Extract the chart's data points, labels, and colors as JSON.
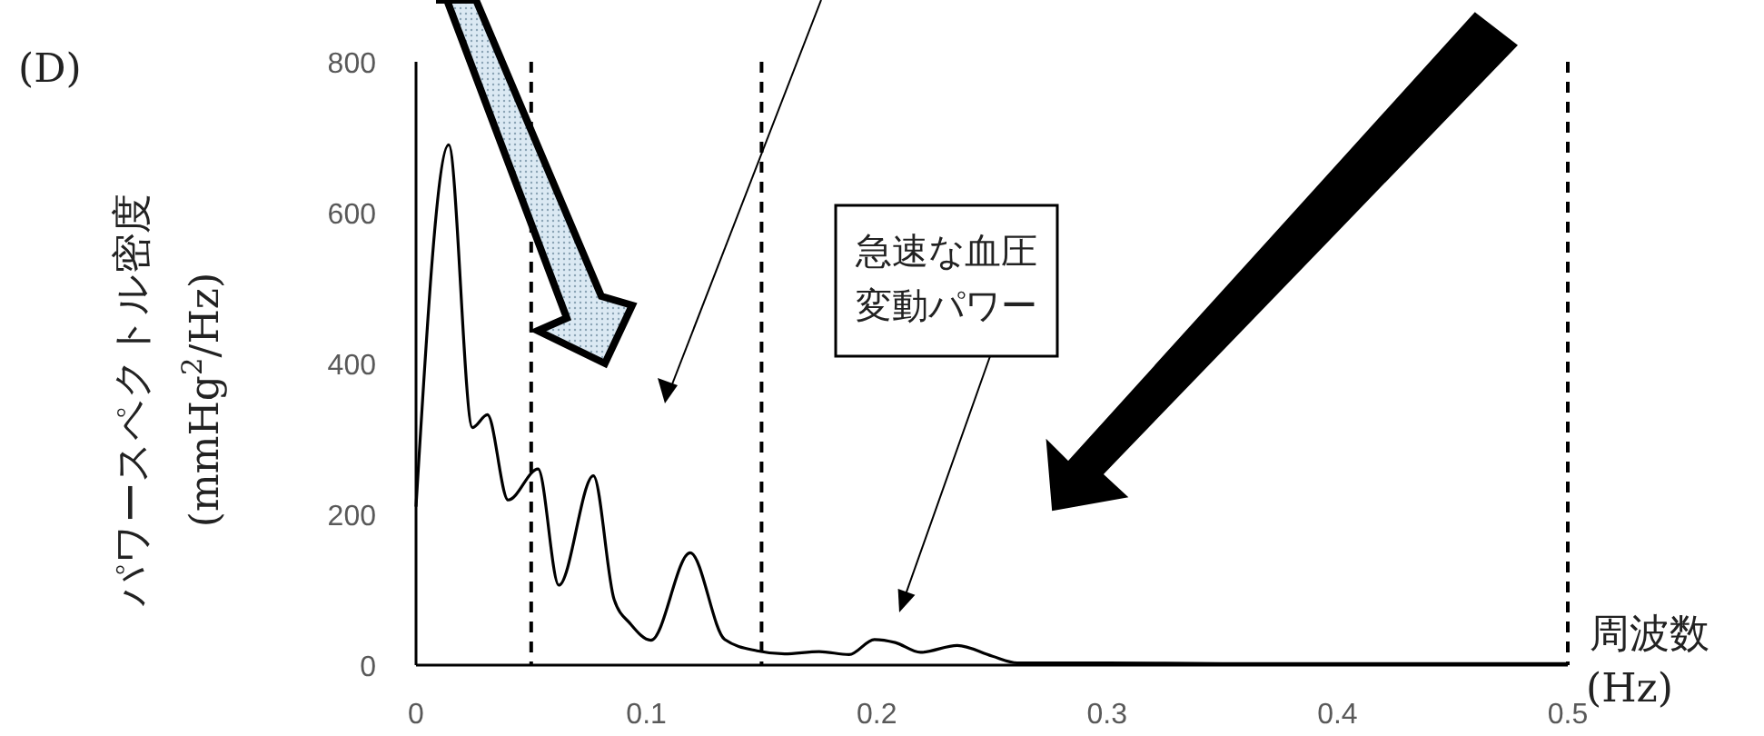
{
  "chart_data": {
    "type": "line",
    "title": "(D)",
    "xlabel": "周波数\n(Hz)",
    "ylabel": "パワースペクトル密度\n(mmHg$^{2}$/Hz)",
    "x": [
      0,
      0.0142,
      0.0245,
      0.031,
      0.04,
      0.053,
      0.062,
      0.077,
      0.086,
      0.093,
      0.102,
      0.119,
      0.134,
      0.148,
      0.16,
      0.175,
      0.188,
      0.199,
      0.208,
      0.219,
      0.235,
      0.25,
      0.261,
      0.3,
      0.35,
      0.4,
      0.45,
      0.5
    ],
    "series": [
      {
        "color": "#000000",
        "values": [
          210,
          690,
          315,
          332,
          219,
          260,
          106,
          251,
          87,
          55,
          33,
          149,
          34,
          19,
          15,
          18,
          14,
          34,
          30,
          17,
          26,
          12,
          3,
          3,
          2,
          2,
          2,
          2
        ]
      }
    ],
    "xlim": [
      0,
      0.5
    ],
    "xticks": [
      {
        "value": 0,
        "label": "0"
      },
      0.1,
      0.2,
      0.3,
      0.4,
      0.5
    ],
    "ylim": [
      0,
      800
    ],
    "yticks": [
      0,
      200,
      400,
      600,
      800
    ],
    "grid": false,
    "marker": "none",
    "line_style": "solid",
    "ref_lines": [
      {
        "axis": "x",
        "value": 0.05,
        "line_style": "dashed",
        "color": "#000000"
      },
      {
        "axis": "x",
        "value": 0.15,
        "line_style": "dashed",
        "color": "#000000"
      },
      {
        "axis": "x",
        "value": 0.5,
        "line_style": "dashed",
        "color": "#000000"
      }
    ],
    "annotations": [
      "急速な血圧変動パワー"
    ]
  }
}
